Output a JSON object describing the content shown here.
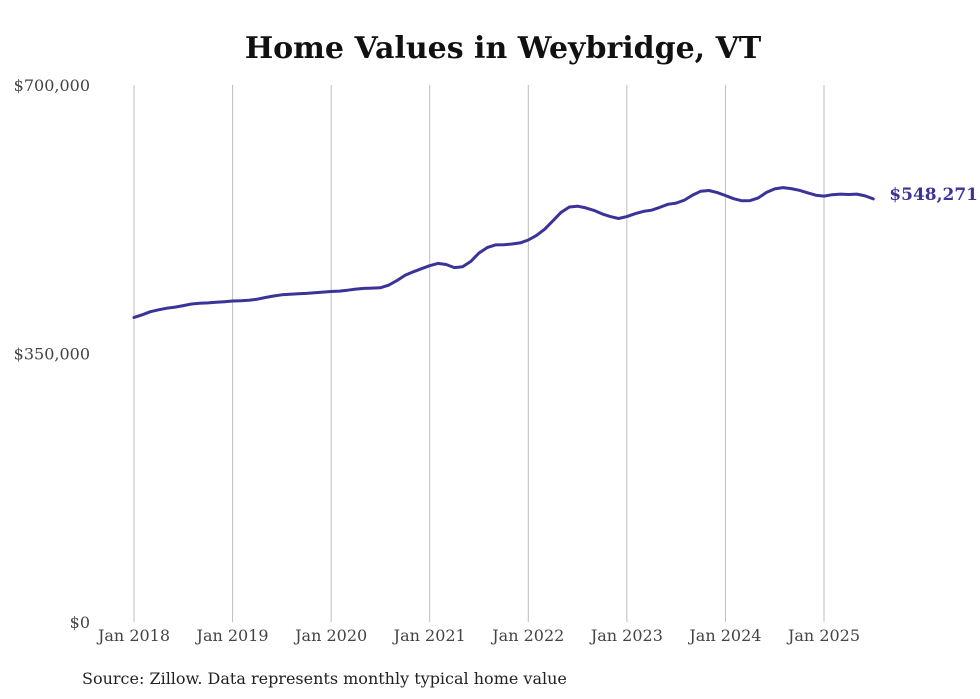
{
  "chart_data": {
    "type": "line",
    "title": "Home Values in Weybridge, VT",
    "xlabel": "",
    "ylabel": "",
    "ylim": [
      0,
      700000
    ],
    "xlim": [
      2018.0,
      2025.85
    ],
    "y_ticks": [
      {
        "value": 0,
        "label": "$0"
      },
      {
        "value": 350000,
        "label": "$350,000"
      },
      {
        "value": 700000,
        "label": "$700,000"
      }
    ],
    "x_ticks": [
      {
        "value": 2018,
        "label": "Jan 2018"
      },
      {
        "value": 2019,
        "label": "Jan 2019"
      },
      {
        "value": 2020,
        "label": "Jan 2020"
      },
      {
        "value": 2021,
        "label": "Jan 2021"
      },
      {
        "value": 2022,
        "label": "Jan 2022"
      },
      {
        "value": 2023,
        "label": "Jan 2023"
      },
      {
        "value": 2024,
        "label": "Jan 2024"
      },
      {
        "value": 2025,
        "label": "Jan 2025"
      }
    ],
    "grid": "vertical",
    "series": [
      {
        "name": "Typical home value",
        "color": "#3a3399",
        "end_label": "$548,271",
        "points": [
          [
            2018.0,
            397000
          ],
          [
            2018.0833,
            400500
          ],
          [
            2018.1667,
            404500
          ],
          [
            2018.25,
            407000
          ],
          [
            2018.3333,
            409000
          ],
          [
            2018.4167,
            410500
          ],
          [
            2018.5,
            412500
          ],
          [
            2018.5833,
            414500
          ],
          [
            2018.6667,
            415500
          ],
          [
            2018.75,
            416000
          ],
          [
            2018.8333,
            416800
          ],
          [
            2018.9167,
            417500
          ],
          [
            2019.0,
            418500
          ],
          [
            2019.0833,
            418800
          ],
          [
            2019.1667,
            419500
          ],
          [
            2019.25,
            420800
          ],
          [
            2019.3333,
            423000
          ],
          [
            2019.4167,
            425000
          ],
          [
            2019.5,
            426500
          ],
          [
            2019.5833,
            427300
          ],
          [
            2019.6667,
            427800
          ],
          [
            2019.75,
            428300
          ],
          [
            2019.8333,
            429300
          ],
          [
            2019.9167,
            430000
          ],
          [
            2020.0,
            430800
          ],
          [
            2020.0833,
            431300
          ],
          [
            2020.1667,
            432500
          ],
          [
            2020.25,
            434000
          ],
          [
            2020.3333,
            434800
          ],
          [
            2020.4167,
            435300
          ],
          [
            2020.5,
            435700
          ],
          [
            2020.5833,
            439000
          ],
          [
            2020.6667,
            445000
          ],
          [
            2020.75,
            452000
          ],
          [
            2020.8333,
            456500
          ],
          [
            2020.9167,
            460500
          ],
          [
            2021.0,
            464500
          ],
          [
            2021.0833,
            467500
          ],
          [
            2021.1667,
            466000
          ],
          [
            2021.25,
            462000
          ],
          [
            2021.3333,
            463200
          ],
          [
            2021.4167,
            470000
          ],
          [
            2021.5,
            481000
          ],
          [
            2021.5833,
            488000
          ],
          [
            2021.6667,
            491500
          ],
          [
            2021.75,
            491800
          ],
          [
            2021.8333,
            492800
          ],
          [
            2021.9167,
            494200
          ],
          [
            2022.0,
            498000
          ],
          [
            2022.0833,
            504000
          ],
          [
            2022.1667,
            512000
          ],
          [
            2022.25,
            523000
          ],
          [
            2022.3333,
            534000
          ],
          [
            2022.4167,
            541000
          ],
          [
            2022.5,
            542000
          ],
          [
            2022.5833,
            539800
          ],
          [
            2022.6667,
            536500
          ],
          [
            2022.75,
            532000
          ],
          [
            2022.8333,
            528500
          ],
          [
            2022.9167,
            526000
          ],
          [
            2023.0,
            528500
          ],
          [
            2023.0833,
            532200
          ],
          [
            2023.1667,
            535200
          ],
          [
            2023.25,
            536800
          ],
          [
            2023.3333,
            540500
          ],
          [
            2023.4167,
            544500
          ],
          [
            2023.5,
            546000
          ],
          [
            2023.5833,
            550000
          ],
          [
            2023.6667,
            556500
          ],
          [
            2023.75,
            561500
          ],
          [
            2023.8333,
            562500
          ],
          [
            2023.9167,
            559800
          ],
          [
            2024.0,
            556000
          ],
          [
            2024.0833,
            551800
          ],
          [
            2024.1667,
            549000
          ],
          [
            2024.25,
            549300
          ],
          [
            2024.3333,
            552800
          ],
          [
            2024.4167,
            560000
          ],
          [
            2024.5,
            564500
          ],
          [
            2024.5833,
            566200
          ],
          [
            2024.6667,
            565000
          ],
          [
            2024.75,
            562800
          ],
          [
            2024.8333,
            559500
          ],
          [
            2024.9167,
            556300
          ],
          [
            2025.0,
            555200
          ],
          [
            2025.0833,
            557000
          ],
          [
            2025.1667,
            557800
          ],
          [
            2025.25,
            557300
          ],
          [
            2025.3333,
            557800
          ],
          [
            2025.4167,
            555500
          ],
          [
            2025.5,
            551500
          ]
        ]
      }
    ],
    "source_note": "Source: Zillow. Data represents monthly typical home value"
  }
}
